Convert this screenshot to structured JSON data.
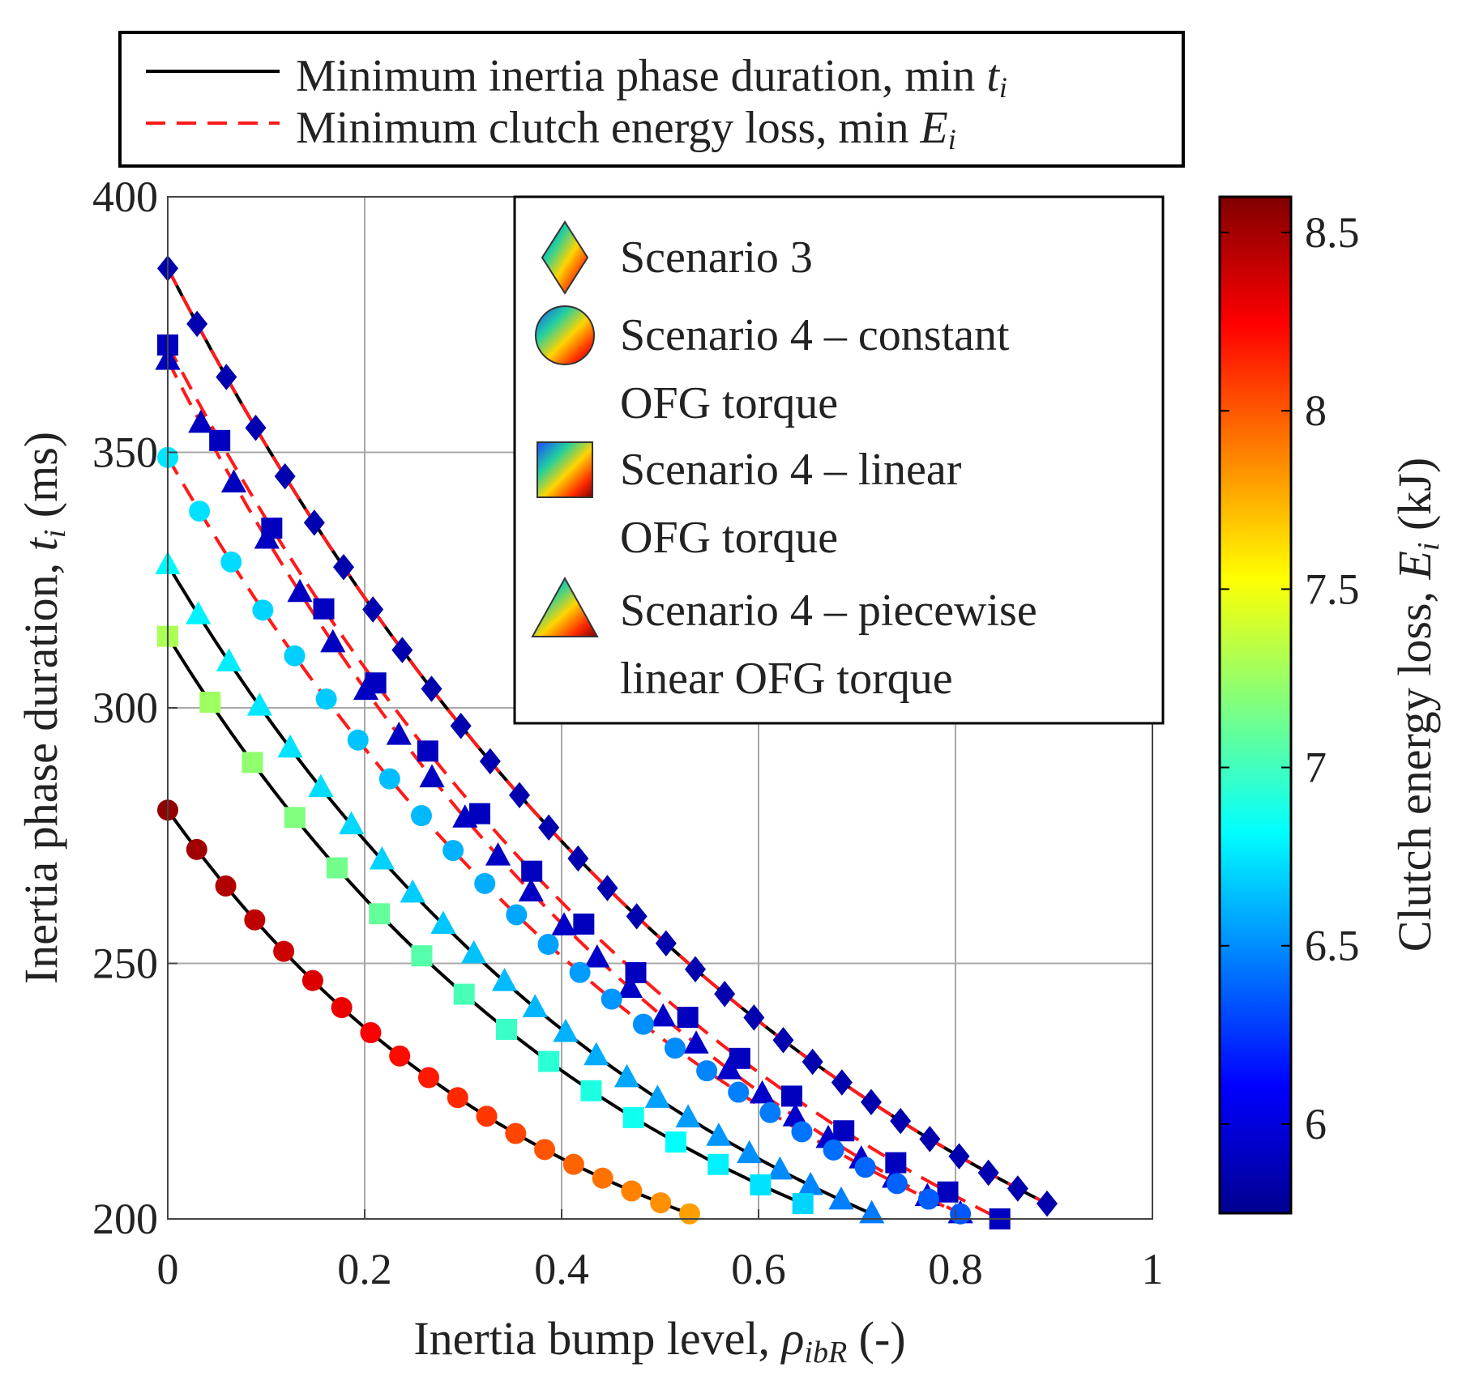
{
  "chart_data": {
    "type": "scatter",
    "xlabel": "Inertia bump level, ρibR (-)",
    "xlabel_parts": {
      "main": "Inertia bump level, ",
      "sym": "ρ",
      "sub": "ibR",
      "unit": " (-)"
    },
    "ylabel": "Inertia phase duration, ti (ms)",
    "ylabel_parts": {
      "main": "Inertia phase duration, ",
      "sym": "t",
      "sub": "i",
      "unit": " (ms)"
    },
    "xlim": [
      0,
      1
    ],
    "ylim": [
      200,
      400
    ],
    "x_ticks": [
      "0",
      "0.2",
      "0.4",
      "0.6",
      "0.8",
      "1"
    ],
    "x_tick_values": [
      0,
      0.2,
      0.4,
      0.6,
      0.8,
      1
    ],
    "y_ticks": [
      "200",
      "250",
      "300",
      "350",
      "400"
    ],
    "y_tick_values": [
      200,
      250,
      300,
      350,
      400
    ],
    "grid": true,
    "line_legend": {
      "position": "top",
      "entries": [
        {
          "label": "Minimum inertia phase duration, min ",
          "sym": "t",
          "sub": "i",
          "style": "solid",
          "color": "#000000"
        },
        {
          "label": "Minimum clutch energy loss, min ",
          "sym": "E",
          "sub": "i",
          "style": "dashed",
          "color": "#ff1a1a"
        }
      ]
    },
    "marker_legend": {
      "position": "top-right",
      "entries": [
        {
          "marker": "diamond",
          "lines": [
            "Scenario 3"
          ]
        },
        {
          "marker": "circle",
          "lines": [
            "Scenario 4 – constant",
            "OFG torque"
          ]
        },
        {
          "marker": "square",
          "lines": [
            "Scenario 4 – linear",
            "OFG torque"
          ]
        },
        {
          "marker": "triangle",
          "lines": [
            "Scenario 4 – piecewise",
            "linear OFG torque"
          ]
        }
      ]
    },
    "colorbar": {
      "label": "Clutch energy loss, Ei (kJ)",
      "label_parts": {
        "main": "Clutch energy loss, ",
        "sym": "E",
        "sub": "i",
        "unit": " (kJ)"
      },
      "range": [
        5.75,
        8.6
      ],
      "ticks": [
        "6",
        "6.5",
        "7",
        "7.5",
        "8",
        "8.5"
      ],
      "tick_values": [
        6,
        6.5,
        7,
        7.5,
        8,
        8.5
      ],
      "colormap": "jet"
    },
    "series": [
      {
        "name": "Scenario 3 (min ti)",
        "marker": "diamond",
        "line": "solid",
        "line_color": "#000000",
        "x_start": 0,
        "x_end": 0.893,
        "y_start": 386,
        "y_end": 203,
        "n": 31,
        "energy_start": 5.85,
        "energy_end": 5.85
      },
      {
        "name": "Scenario 3 (min Ei)",
        "marker": "none",
        "line": "dashed",
        "line_color": "#ff1a1a",
        "x_start": 0,
        "x_end": 0.893,
        "y_start": 386,
        "y_end": 203,
        "n": 2
      },
      {
        "name": "Scenario 4 – linear (min Ei)",
        "marker": "square",
        "line": "dashed",
        "line_color": "#ff1a1a",
        "x_start": 0,
        "x_end": 0.845,
        "y_start": 371,
        "y_end": 200,
        "n": 17,
        "energy_start": 5.9,
        "energy_end": 5.9
      },
      {
        "name": "Scenario 4 – piecewise (min Ei)",
        "marker": "triangle",
        "line": "dashed",
        "line_color": "#ff1a1a",
        "x_start": 0,
        "x_end": 0.805,
        "y_start": 368,
        "y_end": 201,
        "n": 25,
        "energy_start": 5.9,
        "energy_end": 5.95
      },
      {
        "name": "Scenario 4 – constant (min Ei)",
        "marker": "circle",
        "line": "dashed",
        "line_color": "#ff1a1a",
        "x_start": 0,
        "x_end": 0.805,
        "y_start": 349,
        "y_end": 201,
        "n": 26,
        "energy_start": 6.75,
        "energy_end": 6.35
      },
      {
        "name": "Scenario 4 – piecewise (min ti)",
        "marker": "triangle",
        "line": "solid",
        "line_color": "#000000",
        "x_start": 0,
        "x_end": 0.715,
        "y_start": 328,
        "y_end": 201,
        "n": 24,
        "energy_start": 6.8,
        "energy_end": 6.45
      },
      {
        "name": "Scenario 4 – linear (min ti)",
        "marker": "square",
        "line": "solid",
        "line_color": "#000000",
        "x_start": 0,
        "x_end": 0.645,
        "y_start": 314,
        "y_end": 203,
        "n": 16,
        "energy_start": 7.3,
        "energy_end": 6.7
      },
      {
        "name": "Scenario 4 – constant (min ti)",
        "marker": "circle",
        "line": "solid",
        "line_color": "#000000",
        "x_start": 0,
        "x_end": 0.53,
        "y_start": 280,
        "y_end": 201,
        "n": 19,
        "energy_start": 8.55,
        "energy_end": 7.8
      }
    ]
  }
}
